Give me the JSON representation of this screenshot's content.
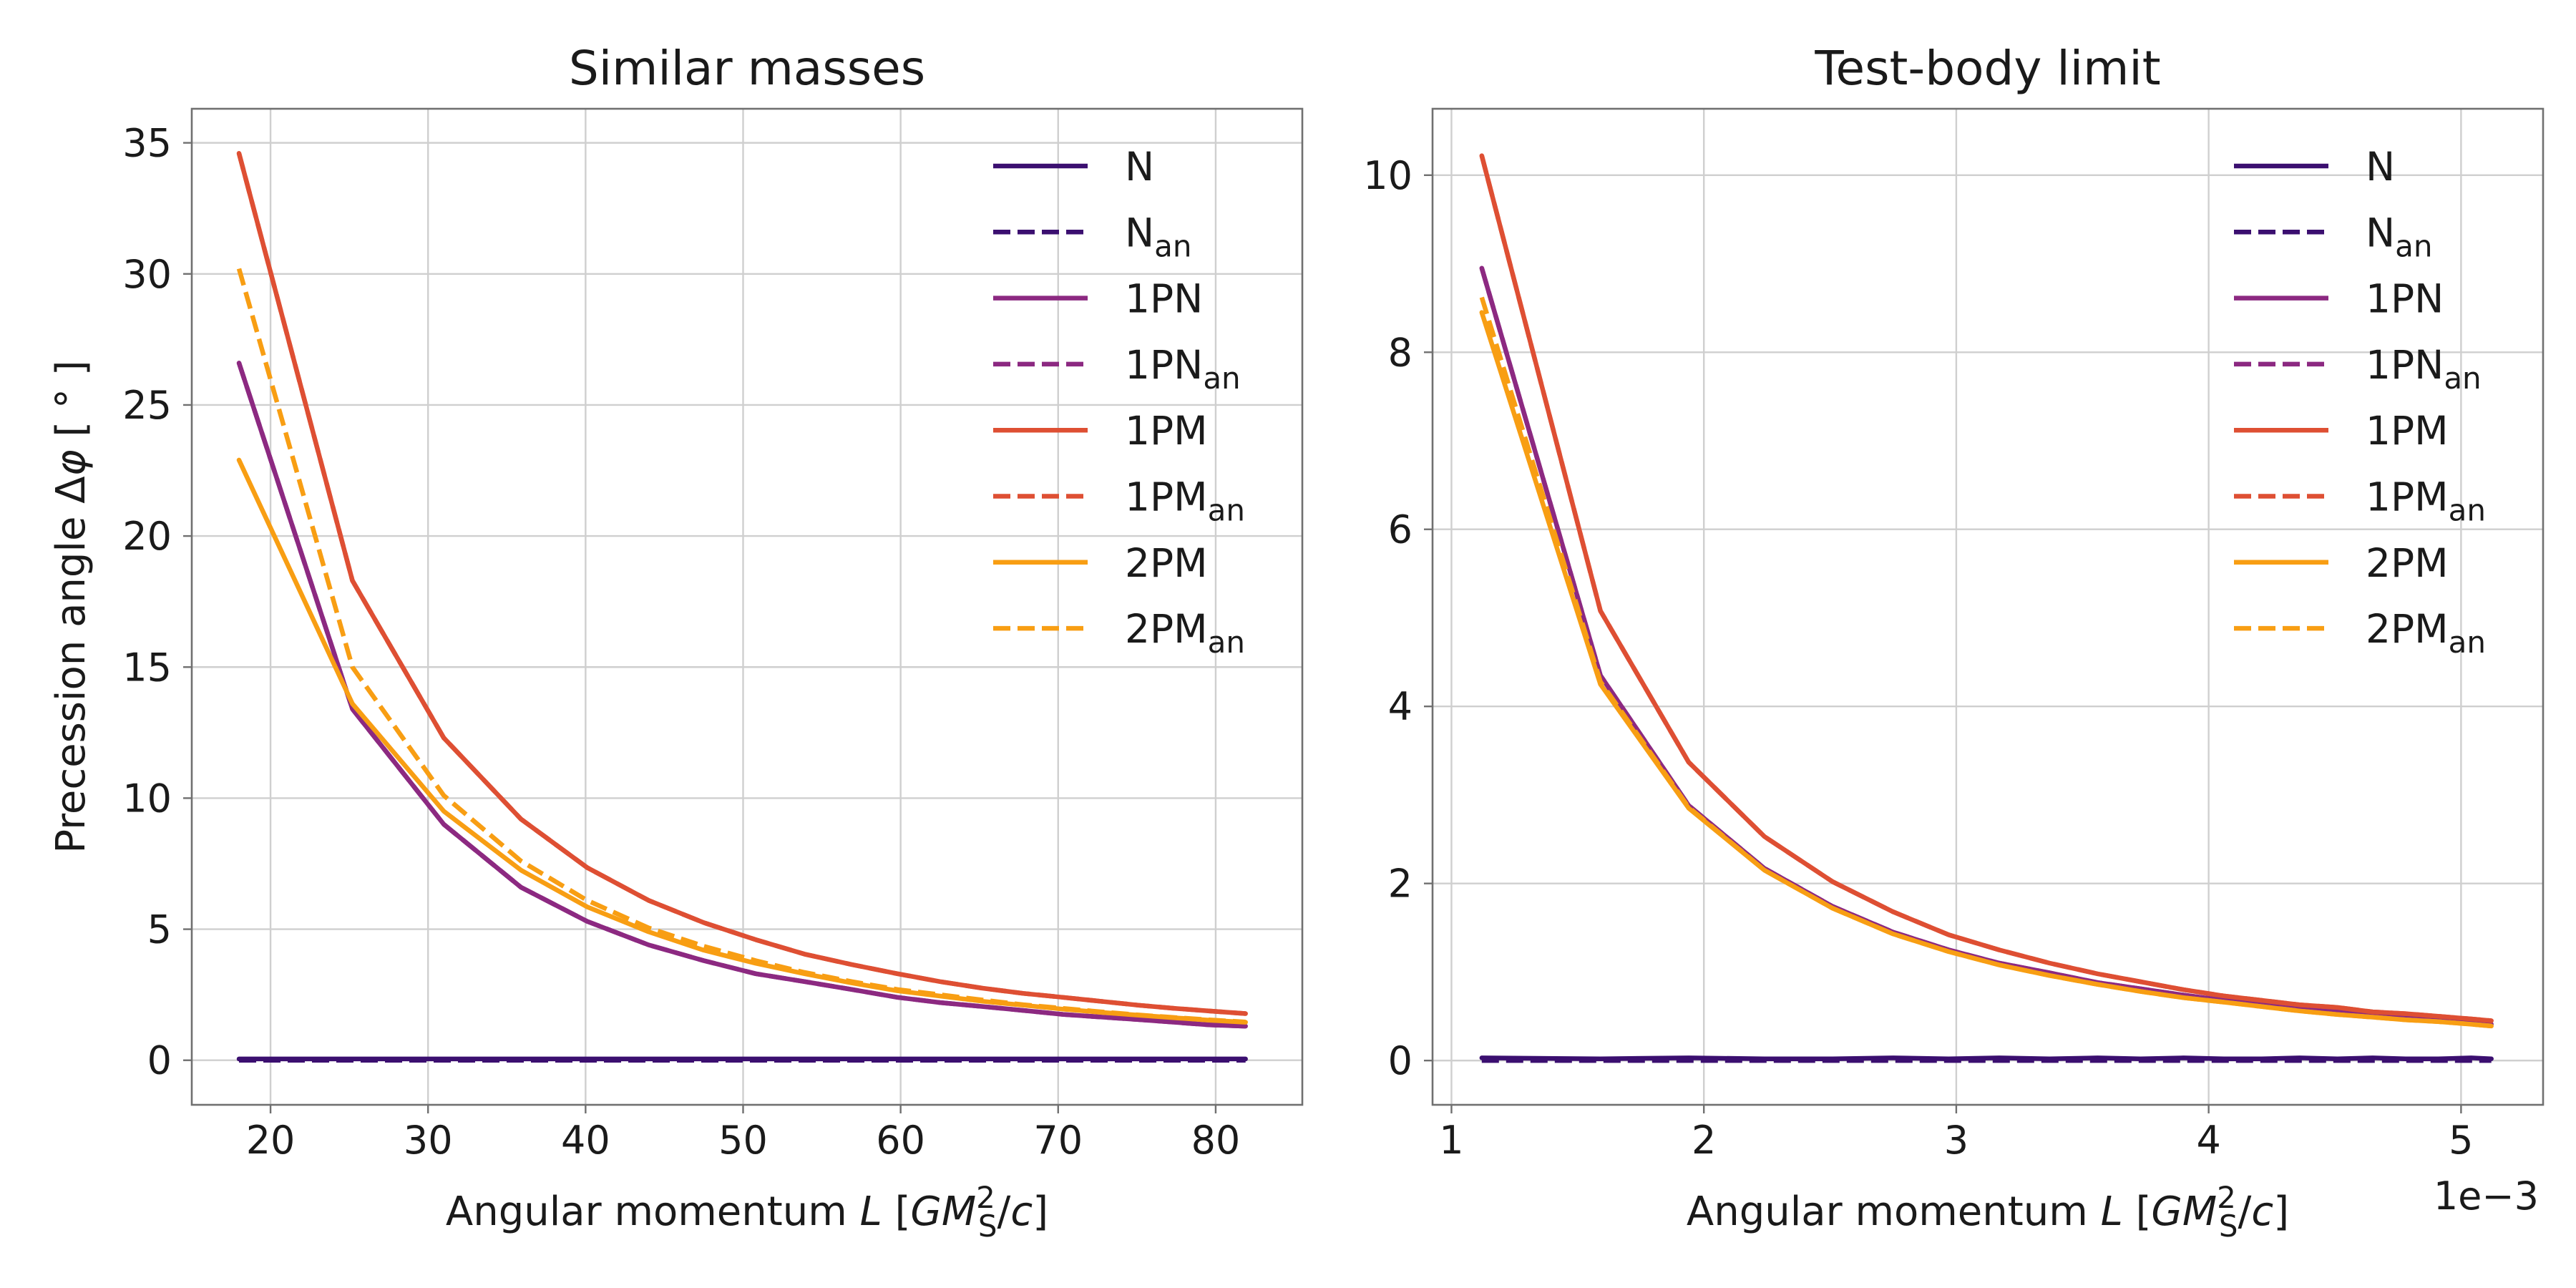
{
  "chart_data": [
    {
      "type": "line",
      "title": "Similar masses",
      "xlabel": "Angular momentum L [GM_S^2/c]",
      "xlabel_parts": {
        "pre": "Angular momentum ",
        "L": "L",
        "open": " [",
        "GM": "GM",
        "sup": "2",
        "sub": "S",
        "slash": "/",
        "c": "c",
        "close": "]"
      },
      "ylabel": "Precession angle Δφ [ ° ]",
      "ylabel_parts": {
        "pre": "Precession angle Δ",
        "phi": "φ",
        "open": " [ ",
        "deg": "°",
        "close": " ]"
      },
      "xlim": [
        15.0,
        85.5
      ],
      "ylim": [
        -1.7,
        36.3
      ],
      "xticks": [
        20,
        30,
        40,
        50,
        60,
        70,
        80
      ],
      "yticks": [
        0,
        5,
        10,
        15,
        20,
        25,
        30,
        35
      ],
      "grid": true,
      "legend_position": "top-right",
      "x": [
        18.0,
        25.2,
        31.0,
        35.9,
        40.1,
        44.0,
        47.5,
        50.8,
        53.9,
        56.9,
        59.8,
        62.5,
        65.2,
        67.8,
        70.3,
        72.7,
        75.1,
        77.4,
        79.6,
        81.9
      ],
      "series": [
        {
          "name": "N",
          "sub": "",
          "color": "#3b0f70",
          "dash": false,
          "values": [
            0.05,
            0.05,
            0.05,
            0.05,
            0.05,
            0.05,
            0.05,
            0.05,
            0.05,
            0.05,
            0.05,
            0.05,
            0.05,
            0.05,
            0.05,
            0.05,
            0.05,
            0.05,
            0.05,
            0.05
          ]
        },
        {
          "name": "N",
          "sub": "an",
          "color": "#3b0f70",
          "dash": true,
          "values": [
            0.0,
            0.0,
            0.0,
            0.0,
            0.0,
            0.0,
            0.0,
            0.0,
            0.0,
            0.0,
            0.0,
            0.0,
            0.0,
            0.0,
            0.0,
            0.0,
            0.0,
            0.0,
            0.0,
            0.0
          ]
        },
        {
          "name": "1PN",
          "sub": "",
          "color": "#8c2981",
          "dash": false,
          "values": [
            26.6,
            13.4,
            9.0,
            6.6,
            5.3,
            4.4,
            3.8,
            3.3,
            3.0,
            2.7,
            2.4,
            2.2,
            2.05,
            1.9,
            1.75,
            1.65,
            1.55,
            1.45,
            1.35,
            1.3
          ]
        },
        {
          "name": "1PN",
          "sub": "an",
          "color": "#8c2981",
          "dash": true,
          "values": [
            26.6,
            13.4,
            9.0,
            6.6,
            5.3,
            4.4,
            3.8,
            3.3,
            3.0,
            2.7,
            2.4,
            2.2,
            2.05,
            1.9,
            1.75,
            1.65,
            1.55,
            1.45,
            1.35,
            1.3
          ]
        },
        {
          "name": "1PM",
          "sub": "",
          "color": "#de4f33",
          "dash": false,
          "values": [
            34.6,
            18.3,
            12.3,
            9.2,
            7.35,
            6.1,
            5.25,
            4.6,
            4.05,
            3.65,
            3.3,
            3.0,
            2.75,
            2.55,
            2.4,
            2.25,
            2.1,
            1.98,
            1.88,
            1.78
          ]
        },
        {
          "name": "1PM",
          "sub": "an",
          "color": "#de4f33",
          "dash": true,
          "values": [
            34.6,
            18.3,
            12.3,
            9.2,
            7.35,
            6.1,
            5.25,
            4.6,
            4.05,
            3.65,
            3.3,
            3.0,
            2.75,
            2.55,
            2.4,
            2.25,
            2.1,
            1.98,
            1.88,
            1.78
          ]
        },
        {
          "name": "2PM",
          "sub": "",
          "color": "#f89e13",
          "dash": false,
          "values": [
            22.9,
            13.6,
            9.5,
            7.25,
            5.85,
            4.9,
            4.2,
            3.7,
            3.3,
            2.95,
            2.65,
            2.45,
            2.25,
            2.1,
            1.95,
            1.83,
            1.72,
            1.62,
            1.53,
            1.45
          ]
        },
        {
          "name": "2PM",
          "sub": "an",
          "color": "#f89e13",
          "dash": true,
          "values": [
            30.2,
            15.0,
            10.1,
            7.6,
            6.1,
            5.05,
            4.35,
            3.8,
            3.35,
            3.0,
            2.7,
            2.5,
            2.3,
            2.12,
            1.98,
            1.85,
            1.73,
            1.63,
            1.54,
            1.46
          ]
        }
      ]
    },
    {
      "type": "line",
      "title": "Test-body limit",
      "xlabel": "Angular momentum L [GM_S^2/c]",
      "xlabel_parts": {
        "pre": "Angular momentum ",
        "L": "L",
        "open": " [",
        "GM": "GM",
        "sup": "2",
        "sub": "S",
        "slash": "/",
        "c": "c",
        "close": "]"
      },
      "offset_text": "1e−3",
      "xlim": [
        0.000925,
        0.005325
      ],
      "ylim": [
        -0.5,
        10.75
      ],
      "xticks": [
        1,
        2,
        3,
        4,
        5
      ],
      "yticks": [
        0,
        2,
        4,
        6,
        8,
        10
      ],
      "grid": true,
      "legend_position": "top-right",
      "x": [
        0.00112,
        0.00159,
        0.00194,
        0.00224,
        0.00251,
        0.00275,
        0.00297,
        0.00317,
        0.00337,
        0.00356,
        0.00373,
        0.0039,
        0.00406,
        0.00421,
        0.00436,
        0.00451,
        0.00465,
        0.00478,
        0.00491,
        0.00504,
        0.00512
      ],
      "series": [
        {
          "name": "N",
          "sub": "",
          "color": "#3b0f70",
          "dash": false,
          "values": [
            0.03,
            0.02,
            0.03,
            0.02,
            0.02,
            0.03,
            0.02,
            0.03,
            0.02,
            0.03,
            0.02,
            0.03,
            0.02,
            0.02,
            0.03,
            0.02,
            0.03,
            0.02,
            0.02,
            0.03,
            0.02
          ]
        },
        {
          "name": "N",
          "sub": "an",
          "color": "#3b0f70",
          "dash": true,
          "values": [
            0.0,
            0.0,
            0.0,
            0.0,
            0.0,
            0.0,
            0.0,
            0.0,
            0.0,
            0.0,
            0.0,
            0.0,
            0.0,
            0.0,
            0.0,
            0.0,
            0.0,
            0.0,
            0.0,
            0.0,
            0.0
          ]
        },
        {
          "name": "1PN",
          "sub": "",
          "color": "#8c2981",
          "dash": false,
          "values": [
            8.95,
            4.35,
            2.88,
            2.17,
            1.74,
            1.45,
            1.25,
            1.1,
            0.99,
            0.88,
            0.81,
            0.74,
            0.68,
            0.63,
            0.59,
            0.55,
            0.52,
            0.49,
            0.46,
            0.43,
            0.41
          ]
        },
        {
          "name": "1PN",
          "sub": "an",
          "color": "#8c2981",
          "dash": true,
          "values": [
            8.95,
            4.35,
            2.88,
            2.17,
            1.74,
            1.45,
            1.25,
            1.1,
            0.99,
            0.88,
            0.81,
            0.74,
            0.68,
            0.63,
            0.59,
            0.55,
            0.52,
            0.49,
            0.46,
            0.43,
            0.41
          ]
        },
        {
          "name": "1PM",
          "sub": "",
          "color": "#de4f33",
          "dash": false,
          "values": [
            10.22,
            5.08,
            3.37,
            2.53,
            2.02,
            1.68,
            1.42,
            1.25,
            1.1,
            0.98,
            0.89,
            0.8,
            0.73,
            0.68,
            0.63,
            0.6,
            0.55,
            0.53,
            0.5,
            0.47,
            0.45
          ]
        },
        {
          "name": "1PM",
          "sub": "an",
          "color": "#de4f33",
          "dash": true,
          "values": [
            10.22,
            5.08,
            3.37,
            2.53,
            2.02,
            1.68,
            1.42,
            1.25,
            1.1,
            0.98,
            0.89,
            0.8,
            0.73,
            0.68,
            0.63,
            0.6,
            0.55,
            0.53,
            0.5,
            0.47,
            0.45
          ]
        },
        {
          "name": "2PM",
          "sub": "",
          "color": "#f89e13",
          "dash": false,
          "values": [
            8.45,
            4.25,
            2.85,
            2.15,
            1.72,
            1.43,
            1.23,
            1.08,
            0.96,
            0.86,
            0.78,
            0.71,
            0.66,
            0.61,
            0.56,
            0.52,
            0.49,
            0.46,
            0.44,
            0.41,
            0.39
          ]
        },
        {
          "name": "2PM",
          "sub": "an",
          "color": "#f89e13",
          "dash": true,
          "values": [
            8.62,
            4.28,
            2.86,
            2.15,
            1.72,
            1.43,
            1.23,
            1.08,
            0.96,
            0.86,
            0.78,
            0.71,
            0.66,
            0.61,
            0.56,
            0.52,
            0.49,
            0.46,
            0.44,
            0.41,
            0.39
          ]
        }
      ]
    }
  ]
}
